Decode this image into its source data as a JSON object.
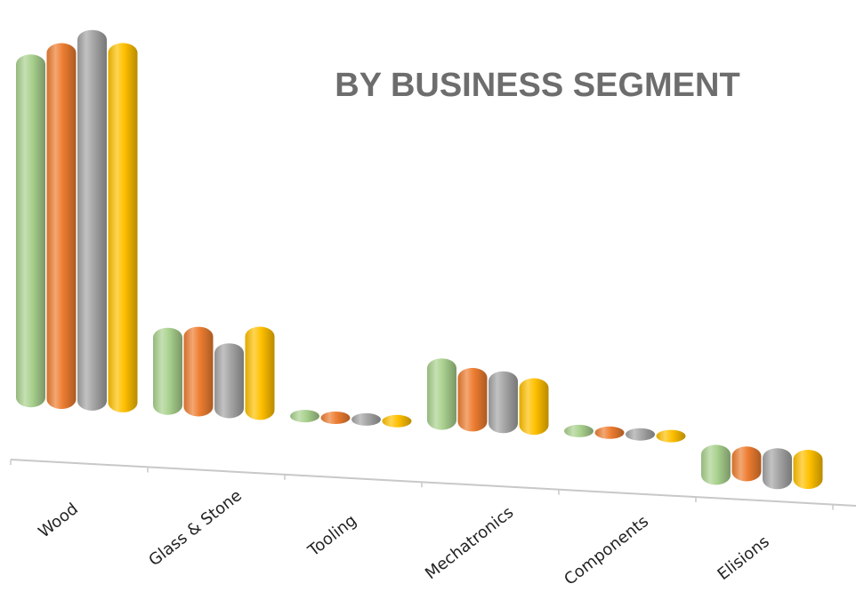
{
  "chart_data": {
    "type": "bar",
    "title": "BY BUSINESS SEGMENT",
    "xlabel": "",
    "ylabel": "",
    "categories": [
      "Wood",
      "Glass & Stone",
      "Tooling",
      "Mechatronics",
      "Components",
      "Elisions"
    ],
    "series": [
      {
        "color": "#a9d18e",
        "values": [
          405,
          100,
          10,
          82,
          14,
          -46
        ]
      },
      {
        "color": "#ed7d31",
        "values": [
          420,
          103,
          8,
          73,
          9,
          -40
        ]
      },
      {
        "color": "#a5a5a5",
        "values": [
          437,
          86,
          7,
          71,
          9,
          -47
        ]
      },
      {
        "color": "#ffc000",
        "values": [
          424,
          107,
          5,
          65,
          9,
          -45
        ]
      }
    ],
    "ylim": [
      -60,
      450
    ],
    "grid": false,
    "legend": "none"
  }
}
